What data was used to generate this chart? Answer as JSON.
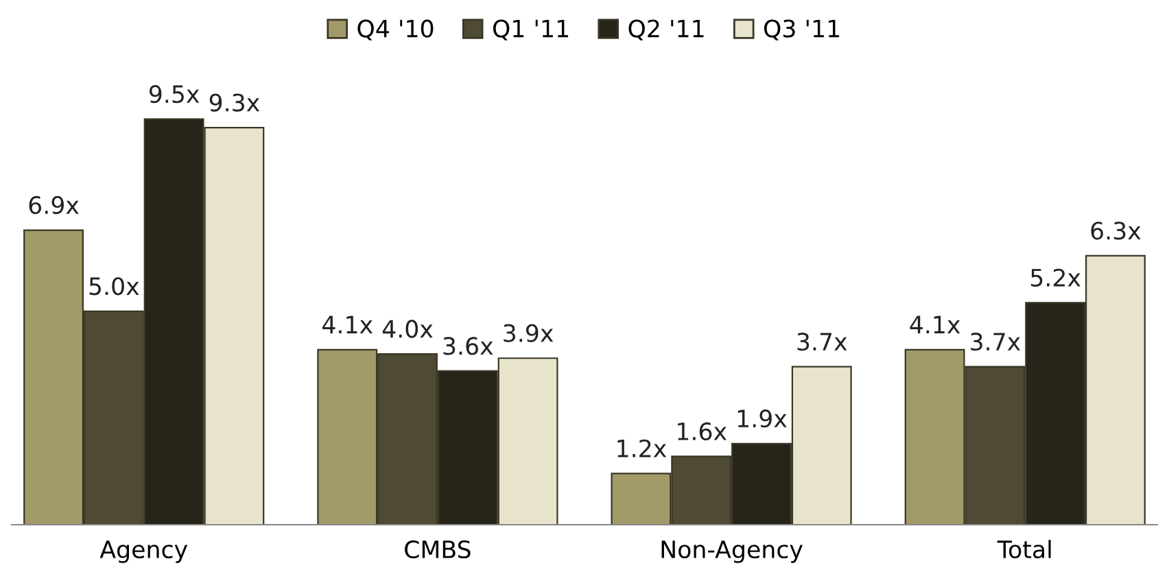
{
  "chart_data": {
    "type": "bar",
    "categories": [
      "Agency",
      "CMBS",
      "Non-Agency",
      "Total"
    ],
    "series": [
      {
        "name": "Q4 '10",
        "color": "#a39a6a",
        "values": [
          6.9,
          4.1,
          1.2,
          4.1
        ],
        "value_labels": [
          "6.9x",
          "4.1x",
          "1.2x",
          "4.1x"
        ]
      },
      {
        "name": "Q1 '11",
        "color": "#4f4a33",
        "values": [
          5.0,
          4.0,
          1.6,
          3.7
        ],
        "value_labels": [
          "5.0x",
          "4.0x",
          "1.6x",
          "3.7x"
        ]
      },
      {
        "name": "Q2 '11",
        "color": "#27251a",
        "values": [
          9.5,
          3.6,
          1.9,
          5.2
        ],
        "value_labels": [
          "9.5x",
          "3.6x",
          "1.9x",
          "5.2x"
        ]
      },
      {
        "name": "Q3 '11",
        "color": "#e8e4cc",
        "values": [
          9.3,
          3.9,
          3.7,
          6.3
        ],
        "value_labels": [
          "9.3x",
          "3.9x",
          "3.7x",
          "6.3x"
        ]
      }
    ],
    "legend": "top",
    "grid": false,
    "tick_labels": "x"
  }
}
